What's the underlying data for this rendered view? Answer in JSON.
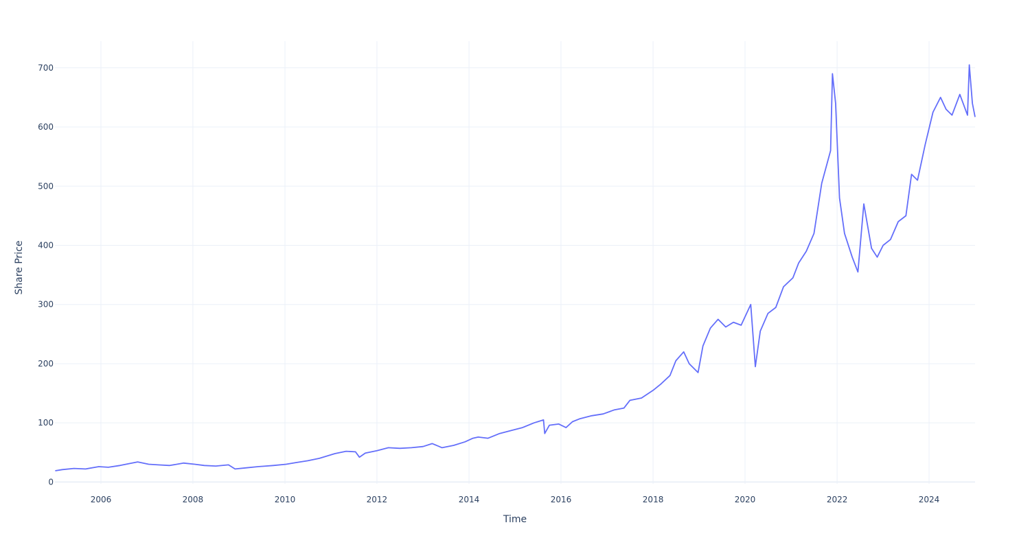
{
  "chart_data": {
    "type": "line",
    "title": "",
    "xlabel": "Time",
    "ylabel": "Share Price",
    "x_axis_kind": "date",
    "xlim": [
      "2005-01-01",
      "2024-12-31"
    ],
    "ylim": [
      -3,
      745
    ],
    "x_ticks": [
      "2006",
      "2008",
      "2010",
      "2012",
      "2014",
      "2016",
      "2018",
      "2020",
      "2022",
      "2024"
    ],
    "y_ticks": [
      0,
      100,
      200,
      300,
      400,
      500,
      600,
      700
    ],
    "grid": true,
    "legend": "none",
    "series": [
      {
        "color": "#636efa",
        "x": [
          "2005-01-03",
          "2005-03-01",
          "2005-06-01",
          "2005-09-01",
          "2005-12-15",
          "2006-03-01",
          "2006-06-01",
          "2006-10-20",
          "2007-01-15",
          "2007-04-01",
          "2007-07-01",
          "2007-10-20",
          "2008-01-15",
          "2008-04-01",
          "2008-07-01",
          "2008-10-10",
          "2008-12-01",
          "2009-03-01",
          "2009-06-01",
          "2009-10-01",
          "2010-01-10",
          "2010-04-01",
          "2010-07-01",
          "2010-10-01",
          "2011-02-01",
          "2011-05-01",
          "2011-07-15",
          "2011-08-15",
          "2011-10-01",
          "2012-01-01",
          "2012-04-01",
          "2012-07-01",
          "2012-10-01",
          "2013-01-01",
          "2013-03-15",
          "2013-06-01",
          "2013-09-01",
          "2013-12-01",
          "2014-02-01",
          "2014-03-15",
          "2014-06-01",
          "2014-09-01",
          "2014-12-01",
          "2015-03-01",
          "2015-06-01",
          "2015-08-15",
          "2015-08-25",
          "2015-10-01",
          "2015-12-15",
          "2016-02-10",
          "2016-04-01",
          "2016-06-01",
          "2016-09-01",
          "2016-12-01",
          "2017-03-01",
          "2017-05-15",
          "2017-07-01",
          "2017-10-01",
          "2018-01-01",
          "2018-03-01",
          "2018-05-15",
          "2018-07-01",
          "2018-09-01",
          "2018-10-15",
          "2018-12-24",
          "2019-02-01",
          "2019-04-01",
          "2019-06-01",
          "2019-08-01",
          "2019-10-01",
          "2019-12-01",
          "2020-02-15",
          "2020-03-23",
          "2020-05-01",
          "2020-07-01",
          "2020-09-01",
          "2020-11-01",
          "2021-01-15",
          "2021-03-01",
          "2021-05-01",
          "2021-07-01",
          "2021-09-01",
          "2021-11-10",
          "2021-11-25",
          "2021-12-20",
          "2022-01-20",
          "2022-03-01",
          "2022-05-01",
          "2022-06-15",
          "2022-08-01",
          "2022-10-01",
          "2022-11-15",
          "2023-01-01",
          "2023-03-01",
          "2023-05-01",
          "2023-07-01",
          "2023-08-15",
          "2023-10-01",
          "2023-12-01",
          "2024-02-01",
          "2024-04-01",
          "2024-05-15",
          "2024-07-01",
          "2024-09-01",
          "2024-11-01",
          "2024-11-15",
          "2024-12-10",
          "2024-12-31"
        ],
        "y": [
          19,
          21,
          23,
          22,
          26,
          25,
          28,
          34,
          30,
          29,
          28,
          32,
          30,
          28,
          27,
          29,
          22,
          24,
          26,
          28,
          30,
          33,
          36,
          40,
          48,
          52,
          51,
          42,
          49,
          53,
          58,
          57,
          58,
          60,
          65,
          58,
          62,
          68,
          74,
          76,
          74,
          82,
          87,
          92,
          100,
          105,
          82,
          96,
          98,
          92,
          102,
          107,
          112,
          115,
          122,
          125,
          138,
          142,
          155,
          165,
          180,
          205,
          220,
          200,
          185,
          230,
          260,
          275,
          262,
          270,
          265,
          300,
          195,
          255,
          285,
          295,
          330,
          345,
          370,
          390,
          420,
          505,
          560,
          690,
          640,
          480,
          420,
          380,
          355,
          470,
          395,
          380,
          400,
          410,
          440,
          450,
          520,
          510,
          570,
          625,
          650,
          630,
          620,
          655,
          620,
          705,
          640,
          617
        ]
      }
    ]
  }
}
